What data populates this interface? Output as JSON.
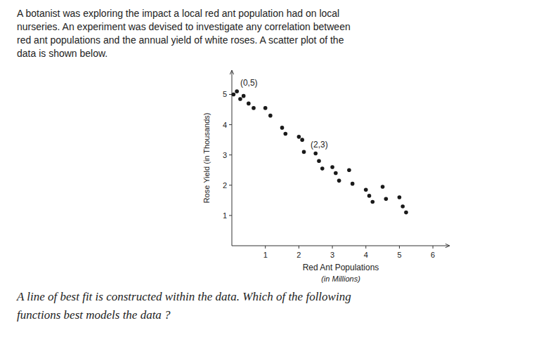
{
  "chart_data": {
    "type": "scatter",
    "title": "A botanist was exploring the impact a local red ant population had on local\nnurseries. An experiment was devised to investigate any correlation between\nred ant populations and the annual yield of white roses. A scatter plot of the\ndata is shown below.",
    "subtitle": "A line of best fit is constructed within the data. Which of the following\nfunctions best models the data ?",
    "x_label": "Red Ant Populations\n(in Millions)",
    "y_label": "Rose Yield (in Thousands)",
    "x": [
      0.05,
      0.15,
      0.25,
      0.35,
      0.5,
      0.65,
      1.0,
      1.15,
      1.5,
      1.6,
      2.0,
      2.1,
      2.15,
      2.5,
      2.6,
      2.7,
      3.0,
      3.1,
      3.2,
      3.5,
      3.6,
      4.0,
      4.1,
      4.2,
      4.5,
      4.6,
      5.0,
      5.1,
      5.2
    ],
    "values": [
      5.0,
      5.1,
      4.85,
      4.95,
      4.7,
      4.55,
      4.55,
      4.3,
      3.9,
      3.7,
      3.6,
      3.5,
      3.1,
      3.05,
      2.8,
      2.55,
      2.6,
      2.4,
      2.15,
      2.5,
      2.05,
      1.85,
      1.65,
      1.45,
      1.95,
      1.55,
      1.6,
      1.3,
      1.1
    ],
    "color": "#1a1a1a",
    "xlim": [
      0,
      6.5
    ],
    "ylim": [
      0,
      5.8
    ],
    "xticks": [
      1,
      2,
      3,
      4,
      5,
      6
    ],
    "yticks": [
      1,
      2,
      3,
      4,
      5
    ],
    "grid": false,
    "annotations": [
      {
        "text": "(0,5)",
        "x": 0.25,
        "y": 5.3
      },
      {
        "text": "(2,3)",
        "x": 2.35,
        "y": 3.25
      }
    ]
  }
}
